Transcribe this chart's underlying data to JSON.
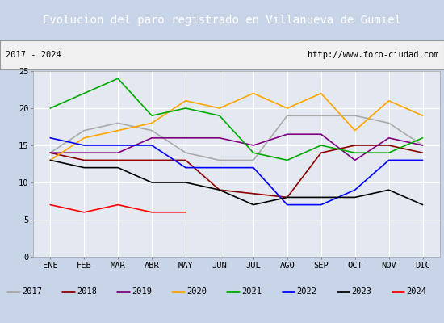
{
  "title": "Evolucion del paro registrado en Villanueva de Gumiel",
  "subtitle_left": "2017 - 2024",
  "subtitle_right": "http://www.foro-ciudad.com",
  "months": [
    "ENE",
    "FEB",
    "MAR",
    "ABR",
    "MAY",
    "JUN",
    "JUL",
    "AGO",
    "SEP",
    "OCT",
    "NOV",
    "DIC"
  ],
  "ylim": [
    0,
    25
  ],
  "yticks": [
    0,
    5,
    10,
    15,
    20,
    25
  ],
  "series": {
    "2017": {
      "color": "#aaaaaa",
      "data": [
        14,
        17,
        18,
        17,
        14,
        13,
        13,
        19,
        19,
        19,
        18,
        15
      ]
    },
    "2018": {
      "color": "#8b0000",
      "data": [
        14,
        13,
        13,
        13,
        13,
        9,
        8.5,
        8,
        14,
        15,
        15,
        14
      ]
    },
    "2019": {
      "color": "#800080",
      "data": [
        14,
        14,
        14,
        16,
        16,
        16,
        15,
        16.5,
        16.5,
        13,
        16,
        15
      ]
    },
    "2020": {
      "color": "#ffa500",
      "data": [
        13,
        16,
        17,
        18,
        21,
        20,
        22,
        20,
        22,
        17,
        21,
        19
      ]
    },
    "2021": {
      "color": "#00aa00",
      "data": [
        20,
        22,
        24,
        19,
        20,
        19,
        14,
        13,
        15,
        14,
        14,
        16
      ]
    },
    "2022": {
      "color": "#0000ff",
      "data": [
        16,
        15,
        15,
        15,
        12,
        12,
        12,
        7,
        7,
        9,
        13,
        13
      ]
    },
    "2023": {
      "color": "#000000",
      "data": [
        13,
        12,
        12,
        10,
        10,
        9,
        7,
        8,
        8,
        8,
        9,
        7
      ]
    },
    "2024": {
      "color": "#ff0000",
      "data": [
        7,
        6,
        7,
        6,
        6,
        null,
        null,
        null,
        null,
        null,
        null,
        null
      ]
    }
  },
  "background_color": "#c8d4e8",
  "plot_bg_color": "#e4e8f0",
  "title_bg_color": "#5080c0",
  "title_color": "#ffffff",
  "grid_color": "#ffffff",
  "subtitle_bg": "#f0f0f0",
  "legend_bg": "#f0f0f0",
  "legend_border": "#999999",
  "title_fontsize": 10,
  "subtitle_fontsize": 7.5,
  "tick_fontsize": 7.5,
  "legend_fontsize": 7.5
}
